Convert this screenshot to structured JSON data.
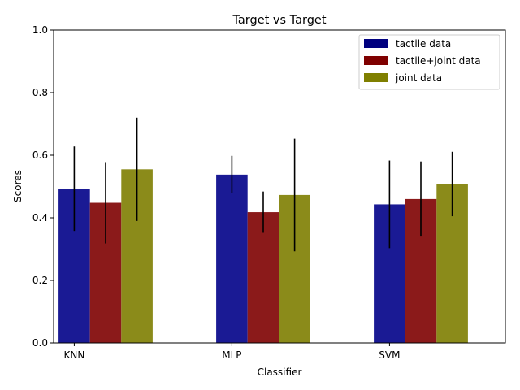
{
  "chart_data": {
    "type": "bar",
    "title": "Target vs Target",
    "xlabel": "Classifier",
    "ylabel": "Scores",
    "ylim": [
      0,
      1.0
    ],
    "yticks": [
      "0.0",
      "0.2",
      "0.4",
      "0.6",
      "0.8",
      "1.0"
    ],
    "categories": [
      "KNN",
      "MLP",
      "SVM"
    ],
    "grid": false,
    "legend_position": "top-right",
    "series": [
      {
        "name": "tactile data",
        "legend_color": "#00007f",
        "bar_color": "#1a1a94",
        "values": [
          0.493,
          0.538,
          0.443
        ],
        "errors": [
          0.135,
          0.06,
          0.14
        ]
      },
      {
        "name": "tactile+joint data",
        "legend_color": "#7f0000",
        "bar_color": "#8b1a1a",
        "values": [
          0.448,
          0.418,
          0.46
        ],
        "errors": [
          0.13,
          0.066,
          0.12
        ]
      },
      {
        "name": "joint data",
        "legend_color": "#7f7f00",
        "bar_color": "#8b8b1a",
        "values": [
          0.555,
          0.473,
          0.508
        ],
        "errors": [
          0.165,
          0.18,
          0.103
        ]
      }
    ]
  }
}
